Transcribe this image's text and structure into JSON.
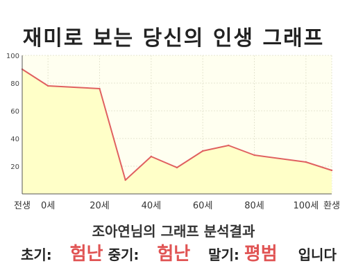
{
  "page": {
    "title": "재미로 보는 당신의 인생 그래프",
    "subtitle": "조아연님의 그래프 분석결과",
    "result": {
      "early_label": "초기:",
      "early_value": "험난",
      "mid_label": "중기:",
      "mid_value": "험난",
      "late_label": "말기:",
      "late_value": "평범",
      "suffix": "입니다"
    }
  },
  "colors": {
    "line": "#e06060",
    "fill": "#ffffc8",
    "plot_bg": "#fffff0",
    "grid": "#e5e5d0",
    "accent": "#e05353"
  },
  "chart_data": {
    "type": "area",
    "title": "",
    "xlabel": "",
    "ylabel": "",
    "x_ticks": [
      "전생",
      "0세",
      "20세",
      "40세",
      "60세",
      "80세",
      "100세",
      "환생"
    ],
    "y_ticks": [
      "20",
      "40",
      "60",
      "80",
      "100"
    ],
    "ylim": [
      0,
      100
    ],
    "grid": true,
    "series": [
      {
        "points": [
          {
            "x": "전생",
            "y": 90
          },
          {
            "x": "0세",
            "y": 78
          },
          {
            "x": "20세",
            "y": 76
          },
          {
            "x": "30세",
            "y": 10
          },
          {
            "x": "40세",
            "y": 27
          },
          {
            "x": "50세",
            "y": 19
          },
          {
            "x": "60세",
            "y": 31
          },
          {
            "x": "70세",
            "y": 35
          },
          {
            "x": "80세",
            "y": 28
          },
          {
            "x": "100세",
            "y": 23
          },
          {
            "x": "환생",
            "y": 17
          }
        ]
      }
    ]
  }
}
